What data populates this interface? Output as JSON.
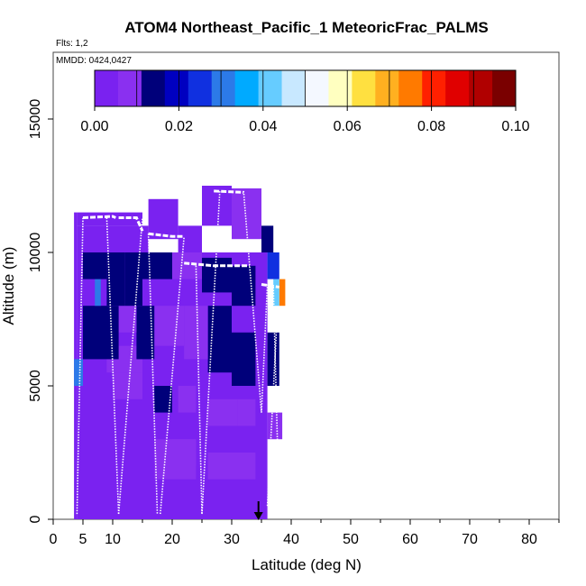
{
  "chart_data": {
    "type": "heatmap",
    "title": "ATOM4 Northeast_Pacific_1 MeteoricFrac_PALMS",
    "flights_note": "Flts: 1,2",
    "date_note": "MMDD: 0424,0427",
    "xlabel": "Latitude (deg N)",
    "ylabel": "Altitude (m)",
    "xlim": [
      0,
      85
    ],
    "ylim": [
      0,
      17500
    ],
    "x_ticks": [
      0,
      5,
      10,
      20,
      30,
      40,
      50,
      60,
      70,
      80
    ],
    "x_tick_labels": [
      "0",
      "5",
      "10",
      "20",
      "30",
      "40",
      "50",
      "60",
      "70",
      "80"
    ],
    "y_ticks": [
      0,
      5000,
      10000,
      15000
    ],
    "y_tick_labels": [
      "0",
      "5000",
      "10000",
      "15000"
    ],
    "colorbar": {
      "min": 0.0,
      "max": 0.1,
      "ticks": [
        0.0,
        0.02,
        0.04,
        0.06,
        0.08,
        0.1
      ],
      "tick_labels": [
        "0.00",
        "0.02",
        "0.04",
        "0.06",
        "0.08",
        "0.10"
      ],
      "palette": [
        "#7a22f0",
        "#8a30f0",
        "#00007a",
        "#0000c0",
        "#1030e0",
        "#2c7ae8",
        "#00aaff",
        "#66ccff",
        "#c8e8ff",
        "#f4f8ff",
        "#ffffc0",
        "#ffe040",
        "#ffb020",
        "#ff7a00",
        "#ff2000",
        "#e00000",
        "#b00000",
        "#7a0000"
      ]
    },
    "arrow_latitude": 34.5,
    "cells": [
      [
        4,
        5,
        11000,
        11500,
        0.002
      ],
      [
        5,
        10,
        11000,
        11500,
        0.003
      ],
      [
        10,
        15,
        11000,
        11500,
        0.002
      ],
      [
        4,
        5,
        10000,
        11000,
        0.003
      ],
      [
        5,
        10,
        10000,
        11000,
        0.004
      ],
      [
        10,
        16,
        10000,
        11000,
        0.003
      ],
      [
        16,
        21,
        10500,
        12000,
        0.002
      ],
      [
        21,
        25,
        10000,
        11000,
        0.003
      ],
      [
        25,
        30,
        11000,
        12500,
        0.003
      ],
      [
        30,
        35,
        10500,
        12400,
        0.006
      ],
      [
        35,
        37,
        10000,
        11000,
        0.014
      ],
      [
        5,
        9,
        9000,
        10000,
        0.012
      ],
      [
        7,
        8,
        8000,
        9500,
        0.028
      ],
      [
        9,
        12,
        8000,
        10000,
        0.016
      ],
      [
        12,
        15,
        8000,
        10000,
        0.014
      ],
      [
        15,
        20,
        9000,
        10000,
        0.012
      ],
      [
        20,
        25,
        9000,
        10000,
        0.011
      ],
      [
        25,
        30,
        8500,
        9800,
        0.013
      ],
      [
        30,
        34,
        8000,
        9500,
        0.012
      ],
      [
        36,
        38,
        9000,
        10000,
        0.025
      ],
      [
        37,
        38,
        8000,
        9000,
        0.04
      ],
      [
        38,
        39,
        8000,
        9000,
        0.075
      ],
      [
        3.5,
        5,
        5000,
        6000,
        0.03
      ],
      [
        5,
        11,
        6000,
        8000,
        0.012
      ],
      [
        11,
        14,
        7000,
        8000,
        0.01
      ],
      [
        14,
        17,
        6000,
        8000,
        0.012
      ],
      [
        17,
        22,
        6500,
        8000,
        0.011
      ],
      [
        22,
        26,
        6000,
        8000,
        0.01
      ],
      [
        26,
        30,
        5500,
        8000,
        0.012
      ],
      [
        30,
        34,
        5000,
        7000,
        0.013
      ],
      [
        36,
        38,
        5000,
        7000,
        0.012
      ],
      [
        9,
        15,
        5500,
        6500,
        0.01
      ],
      [
        10,
        15,
        4500,
        5500,
        0.011
      ],
      [
        17,
        20,
        4000,
        5000,
        0.012
      ],
      [
        21,
        24,
        4000,
        5000,
        0.011
      ],
      [
        26,
        31,
        3500,
        4500,
        0.008
      ],
      [
        31,
        34,
        3500,
        4500,
        0.01
      ],
      [
        36,
        38.5,
        3000,
        4000,
        0.01
      ],
      [
        17,
        24,
        1500,
        3000,
        0.01
      ],
      [
        20,
        24,
        2000,
        3000,
        0.011
      ],
      [
        26,
        30,
        1500,
        2500,
        0.008
      ],
      [
        30,
        34,
        1500,
        2500,
        0.006
      ],
      [
        3.5,
        4,
        0,
        11500,
        0.003
      ],
      [
        4,
        36,
        0,
        10000,
        0.002
      ]
    ],
    "track_segments": [
      [
        [
          5,
          11300
        ],
        [
          10,
          11350
        ],
        [
          10.5,
          11300
        ]
      ],
      [
        [
          11,
          11300
        ],
        [
          14,
          11300
        ],
        [
          15,
          10800
        ]
      ],
      [
        [
          16,
          10700
        ],
        [
          20,
          10600
        ],
        [
          22,
          10600
        ]
      ],
      [
        [
          22,
          9600
        ],
        [
          27,
          9500
        ],
        [
          33,
          9500
        ]
      ],
      [
        [
          27,
          12300
        ],
        [
          32,
          12250
        ]
      ],
      [
        [
          35,
          8800
        ],
        [
          38,
          8700
        ]
      ]
    ],
    "profiles": [
      [
        [
          4,
          200
        ],
        [
          5,
          11300
        ]
      ],
      [
        [
          9,
          11300
        ],
        [
          11,
          200
        ]
      ],
      [
        [
          11,
          200
        ],
        [
          15,
          11300
        ]
      ],
      [
        [
          16,
          10700
        ],
        [
          17.5,
          200
        ]
      ],
      [
        [
          18,
          200
        ],
        [
          22,
          10600
        ]
      ],
      [
        [
          24,
          9500
        ],
        [
          25,
          200
        ]
      ],
      [
        [
          25,
          200
        ],
        [
          28,
          12300
        ]
      ],
      [
        [
          32,
          12300
        ],
        [
          35,
          4000
        ]
      ],
      [
        [
          35,
          4000
        ],
        [
          36,
          8800
        ]
      ],
      [
        [
          37,
          8700
        ],
        [
          38,
          200
        ]
      ],
      [
        [
          36,
          500
        ],
        [
          37.5,
          7000
        ]
      ]
    ]
  }
}
